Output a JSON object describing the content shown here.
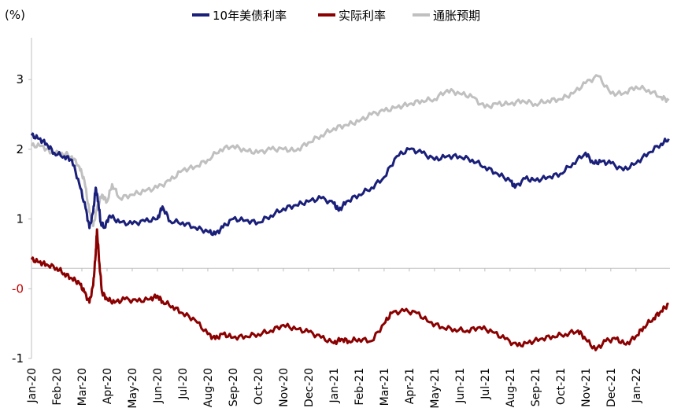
{
  "chart_data": {
    "type": "line",
    "unit_label": "(%)",
    "legend_position": "top",
    "grid": false,
    "ylim": [
      -1,
      3.6
    ],
    "y_ticks": [
      {
        "value": 3,
        "label": "3"
      },
      {
        "value": 2,
        "label": "2"
      },
      {
        "value": 1,
        "label": "1"
      },
      {
        "value": 0,
        "label": "-0"
      },
      {
        "value": -1,
        "label": "-1"
      }
    ],
    "x_ticks": [
      "Jan-20",
      "Feb-20",
      "Mar-20",
      "Apr-20",
      "May-20",
      "Jun-20",
      "Jul-20",
      "Aug-20",
      "Sep-20",
      "Oct-20",
      "Nov-20",
      "Dec-20",
      "Jan-21",
      "Feb-21",
      "Mar-21",
      "Apr-21",
      "May-21",
      "Jun-21",
      "Jul-21",
      "Aug-21",
      "Sep-21",
      "Oct-21",
      "Nov-21",
      "Dec-21",
      "Jan-22"
    ],
    "x_start_month": "Jan-20",
    "x_end_month": "Feb-22",
    "series": [
      {
        "name": "10年美债利率",
        "color": "#1a1f7a",
        "points": [
          [
            0,
            2.2
          ],
          [
            0.3,
            2.15
          ],
          [
            0.6,
            2.08
          ],
          [
            0.9,
            1.95
          ],
          [
            1.3,
            1.9
          ],
          [
            1.6,
            1.85
          ],
          [
            1.9,
            1.5
          ],
          [
            2.15,
            1.15
          ],
          [
            2.3,
            0.87
          ],
          [
            2.45,
            1.1
          ],
          [
            2.55,
            1.45
          ],
          [
            2.65,
            1.25
          ],
          [
            2.75,
            0.95
          ],
          [
            2.9,
            0.88
          ],
          [
            3.1,
            1.05
          ],
          [
            3.5,
            0.95
          ],
          [
            4.0,
            0.93
          ],
          [
            4.5,
            0.97
          ],
          [
            5.0,
            1.0
          ],
          [
            5.2,
            1.18
          ],
          [
            5.5,
            0.97
          ],
          [
            6.0,
            0.95
          ],
          [
            6.5,
            0.88
          ],
          [
            7.0,
            0.82
          ],
          [
            7.3,
            0.78
          ],
          [
            7.6,
            0.88
          ],
          [
            8.0,
            1.0
          ],
          [
            8.5,
            0.98
          ],
          [
            9.0,
            0.95
          ],
          [
            9.5,
            1.05
          ],
          [
            10.0,
            1.15
          ],
          [
            10.5,
            1.2
          ],
          [
            11.0,
            1.25
          ],
          [
            11.5,
            1.3
          ],
          [
            12.0,
            1.22
          ],
          [
            12.2,
            1.12
          ],
          [
            12.5,
            1.25
          ],
          [
            13.0,
            1.35
          ],
          [
            13.5,
            1.45
          ],
          [
            14.0,
            1.6
          ],
          [
            14.5,
            1.9
          ],
          [
            15.0,
            2.0
          ],
          [
            15.5,
            1.95
          ],
          [
            16.0,
            1.85
          ],
          [
            16.5,
            1.9
          ],
          [
            17.0,
            1.9
          ],
          [
            17.5,
            1.85
          ],
          [
            18.0,
            1.75
          ],
          [
            18.5,
            1.65
          ],
          [
            19.0,
            1.55
          ],
          [
            19.2,
            1.45
          ],
          [
            19.6,
            1.58
          ],
          [
            20.0,
            1.55
          ],
          [
            20.5,
            1.6
          ],
          [
            21.0,
            1.65
          ],
          [
            21.5,
            1.8
          ],
          [
            22.0,
            1.95
          ],
          [
            22.3,
            1.8
          ],
          [
            22.6,
            1.82
          ],
          [
            23.0,
            1.8
          ],
          [
            23.5,
            1.7
          ],
          [
            24.0,
            1.8
          ],
          [
            24.5,
            1.95
          ],
          [
            25.0,
            2.08
          ],
          [
            25.3,
            2.15
          ]
        ]
      },
      {
        "name": "实际利率",
        "color": "#8b0000",
        "points": [
          [
            0,
            0.42
          ],
          [
            0.3,
            0.38
          ],
          [
            0.6,
            0.35
          ],
          [
            1.0,
            0.3
          ],
          [
            1.3,
            0.22
          ],
          [
            1.6,
            0.15
          ],
          [
            1.9,
            0.08
          ],
          [
            2.1,
            -0.05
          ],
          [
            2.3,
            -0.2
          ],
          [
            2.45,
            0.05
          ],
          [
            2.55,
            0.5
          ],
          [
            2.6,
            0.85
          ],
          [
            2.7,
            0.35
          ],
          [
            2.8,
            -0.05
          ],
          [
            3.0,
            -0.15
          ],
          [
            3.3,
            -0.2
          ],
          [
            3.7,
            -0.15
          ],
          [
            4.2,
            -0.18
          ],
          [
            4.7,
            -0.15
          ],
          [
            5.0,
            -0.1
          ],
          [
            5.2,
            -0.18
          ],
          [
            5.6,
            -0.25
          ],
          [
            6.0,
            -0.35
          ],
          [
            6.5,
            -0.45
          ],
          [
            7.0,
            -0.65
          ],
          [
            7.3,
            -0.72
          ],
          [
            7.6,
            -0.65
          ],
          [
            8.0,
            -0.7
          ],
          [
            8.5,
            -0.68
          ],
          [
            9.0,
            -0.65
          ],
          [
            9.5,
            -0.6
          ],
          [
            10.0,
            -0.52
          ],
          [
            10.5,
            -0.58
          ],
          [
            11.0,
            -0.62
          ],
          [
            11.5,
            -0.7
          ],
          [
            12.0,
            -0.78
          ],
          [
            12.3,
            -0.72
          ],
          [
            12.6,
            -0.75
          ],
          [
            13.0,
            -0.72
          ],
          [
            13.5,
            -0.75
          ],
          [
            14.0,
            -0.5
          ],
          [
            14.3,
            -0.35
          ],
          [
            14.8,
            -0.32
          ],
          [
            15.3,
            -0.35
          ],
          [
            15.8,
            -0.48
          ],
          [
            16.3,
            -0.55
          ],
          [
            16.8,
            -0.58
          ],
          [
            17.3,
            -0.6
          ],
          [
            17.8,
            -0.55
          ],
          [
            18.3,
            -0.62
          ],
          [
            18.8,
            -0.72
          ],
          [
            19.3,
            -0.82
          ],
          [
            19.7,
            -0.78
          ],
          [
            20.2,
            -0.72
          ],
          [
            20.7,
            -0.68
          ],
          [
            21.2,
            -0.65
          ],
          [
            21.7,
            -0.6
          ],
          [
            22.0,
            -0.72
          ],
          [
            22.4,
            -0.88
          ],
          [
            22.8,
            -0.75
          ],
          [
            23.2,
            -0.72
          ],
          [
            23.6,
            -0.8
          ],
          [
            24.0,
            -0.68
          ],
          [
            24.3,
            -0.55
          ],
          [
            24.7,
            -0.42
          ],
          [
            25.0,
            -0.32
          ],
          [
            25.3,
            -0.22
          ]
        ]
      },
      {
        "name": "通胀预期",
        "color": "#c0c0c0",
        "points": [
          [
            0,
            2.05
          ],
          [
            0.4,
            2.05
          ],
          [
            0.8,
            1.95
          ],
          [
            1.2,
            1.95
          ],
          [
            1.6,
            1.9
          ],
          [
            1.9,
            1.75
          ],
          [
            2.1,
            1.55
          ],
          [
            2.3,
            1.1
          ],
          [
            2.45,
            0.9
          ],
          [
            2.6,
            1.15
          ],
          [
            2.8,
            1.35
          ],
          [
            3.0,
            1.25
          ],
          [
            3.2,
            1.5
          ],
          [
            3.5,
            1.3
          ],
          [
            4.0,
            1.35
          ],
          [
            4.5,
            1.4
          ],
          [
            5.0,
            1.45
          ],
          [
            5.5,
            1.55
          ],
          [
            6.0,
            1.7
          ],
          [
            6.5,
            1.75
          ],
          [
            7.0,
            1.85
          ],
          [
            7.5,
            2.0
          ],
          [
            8.0,
            2.05
          ],
          [
            8.5,
            1.98
          ],
          [
            9.0,
            1.95
          ],
          [
            9.5,
            2.0
          ],
          [
            10.0,
            2.0
          ],
          [
            10.5,
            1.98
          ],
          [
            11.0,
            2.1
          ],
          [
            11.5,
            2.2
          ],
          [
            12.0,
            2.3
          ],
          [
            12.5,
            2.35
          ],
          [
            13.0,
            2.4
          ],
          [
            13.5,
            2.5
          ],
          [
            14.0,
            2.55
          ],
          [
            14.5,
            2.6
          ],
          [
            15.0,
            2.65
          ],
          [
            15.5,
            2.7
          ],
          [
            16.0,
            2.72
          ],
          [
            16.5,
            2.85
          ],
          [
            17.0,
            2.8
          ],
          [
            17.5,
            2.75
          ],
          [
            18.0,
            2.6
          ],
          [
            18.5,
            2.65
          ],
          [
            19.0,
            2.65
          ],
          [
            19.5,
            2.7
          ],
          [
            20.0,
            2.65
          ],
          [
            20.5,
            2.7
          ],
          [
            21.0,
            2.72
          ],
          [
            21.5,
            2.8
          ],
          [
            22.0,
            2.95
          ],
          [
            22.5,
            3.05
          ],
          [
            23.0,
            2.8
          ],
          [
            23.5,
            2.8
          ],
          [
            24.0,
            2.9
          ],
          [
            24.5,
            2.85
          ],
          [
            25.0,
            2.75
          ],
          [
            25.3,
            2.7
          ]
        ]
      }
    ]
  }
}
